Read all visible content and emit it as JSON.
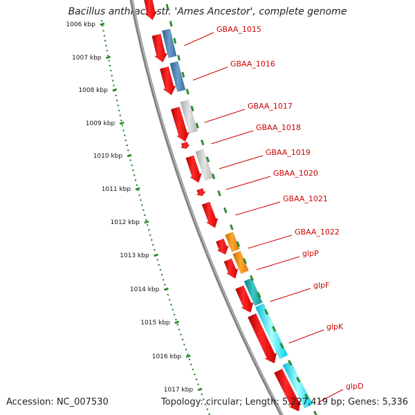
{
  "title": "Bacillus anthracis str. 'Ames Ancestor', complete genome",
  "accession": "Accession: NC_007530",
  "topology": "Topology: circular; Length: 5,227,419 bp; Genes: 5,336",
  "colors": {
    "backbone": "#808080",
    "tick_green": "#2e8b2e",
    "cds": "#ff0000",
    "blue_feature": "#4a7fb0",
    "gray_feature": "#c8c8c8",
    "orange_feature": "#ff8c00",
    "teal_feature": "#17a8a8",
    "cyan_feature": "#00e5ff",
    "label": "#cc0000"
  },
  "kbp_ticks": [
    "1006 kbp",
    "1007 kbp",
    "1008 kbp",
    "1009 kbp",
    "1010 kbp",
    "1011 kbp",
    "1012 kbp",
    "1013 kbp",
    "1014 kbp",
    "1015 kbp",
    "1016 kbp",
    "1017 kbp"
  ],
  "gene_labels": [
    "GBAA_1015",
    "GBAA_1016",
    "GBAA_1017",
    "GBAA_1018",
    "GBAA_1019",
    "GBAA_1020",
    "GBAA_1021",
    "GBAA_1022",
    "glpP",
    "glpF",
    "glpK",
    "glpD"
  ]
}
